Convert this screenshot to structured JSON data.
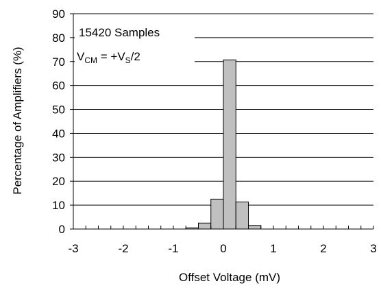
{
  "chart_data": {
    "type": "bar",
    "title": "",
    "xlabel": "Offset Voltage (mV)",
    "ylabel": "Percentage of Amplifiers (%)",
    "xlim": [
      -3,
      3
    ],
    "ylim": [
      0,
      90
    ],
    "x_ticks": [
      "-3",
      "-2",
      "-1",
      "0",
      "1",
      "2",
      "3"
    ],
    "y_ticks": [
      "0",
      "10",
      "20",
      "30",
      "40",
      "50",
      "60",
      "70",
      "80",
      "90"
    ],
    "bin_width": 0.25,
    "bins": [
      {
        "center": -0.625,
        "value": 0.5
      },
      {
        "center": -0.375,
        "value": 2.5
      },
      {
        "center": -0.125,
        "value": 12.5
      },
      {
        "center": 0.125,
        "value": 70.7
      },
      {
        "center": 0.375,
        "value": 11.3
      },
      {
        "center": 0.625,
        "value": 1.5
      }
    ],
    "grid": true,
    "bar_color": "#c0c0c0",
    "annotations": {
      "samples": "15420 Samples",
      "vcm_prefix": "V",
      "vcm_sub1": "CM",
      "vcm_mid": " = +V",
      "vcm_sub2": "S",
      "vcm_suffix": "/2"
    }
  }
}
